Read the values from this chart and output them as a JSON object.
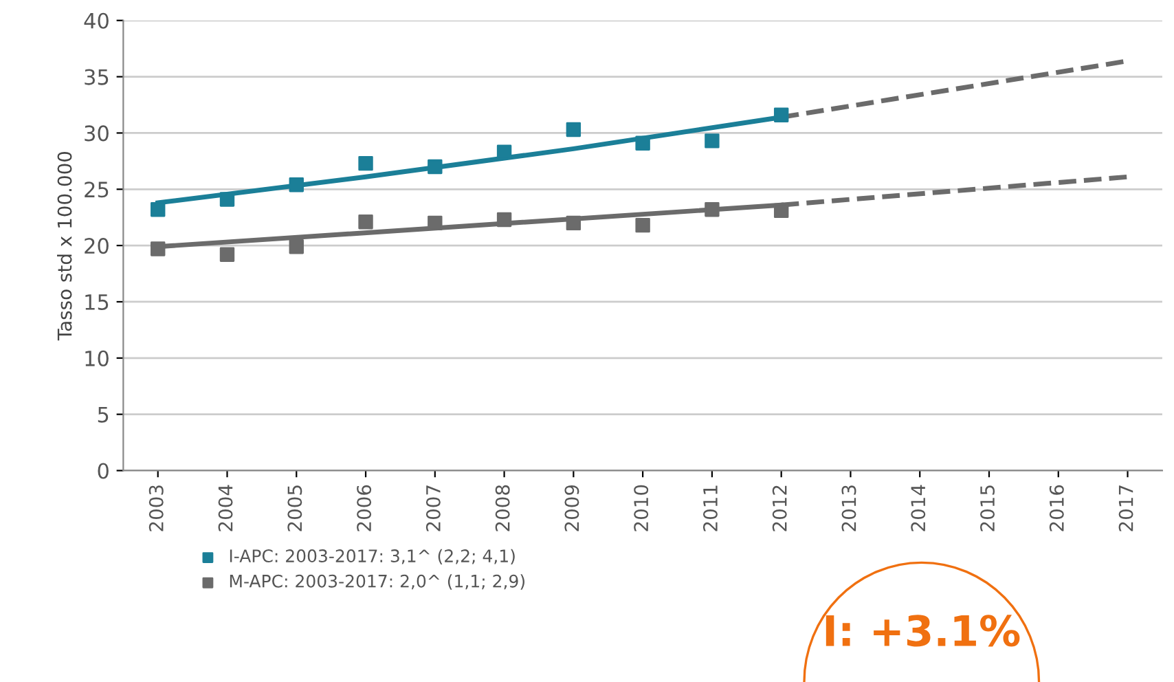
{
  "chart_data": {
    "type": "scatter",
    "ylabel": "Tasso std x 100.000",
    "series": [
      {
        "name": "I-APC: 2003-2017: 3,1^ (2,2; 4,1)",
        "color": "#1b7f98",
        "marker": "square",
        "x": [
          2003,
          2004,
          2005,
          2006,
          2007,
          2008,
          2009,
          2010,
          2011,
          2012
        ],
        "values": [
          23.2,
          24.1,
          25.4,
          27.3,
          27.0,
          28.3,
          30.3,
          29.1,
          29.3,
          31.6
        ]
      },
      {
        "name": "M-APC: 2003-2017: 2,0^ (1,1; 2,9)",
        "color": "#6b6b6b",
        "marker": "square",
        "x": [
          2003,
          2004,
          2005,
          2006,
          2007,
          2008,
          2009,
          2010,
          2011,
          2012
        ],
        "values": [
          19.7,
          19.2,
          19.9,
          22.1,
          22.0,
          22.3,
          22.0,
          21.8,
          23.2,
          23.1
        ]
      },
      {
        "color": "#1b7f98",
        "type": "line",
        "line_style": "solid",
        "x": [
          2003,
          2006,
          2009,
          2012
        ],
        "values": [
          23.8,
          26.1,
          28.6,
          31.4
        ]
      },
      {
        "color": "#6b6b6b",
        "type": "line",
        "line_style": "dashed",
        "x": [
          2012,
          2017
        ],
        "values": [
          31.4,
          36.4
        ]
      },
      {
        "color": "#6b6b6b",
        "type": "line",
        "line_style": "solid",
        "x": [
          2003,
          2012
        ],
        "values": [
          19.9,
          23.6
        ]
      },
      {
        "color": "#6b6b6b",
        "type": "line",
        "line_style": "dashed",
        "x": [
          2012,
          2017
        ],
        "values": [
          23.6,
          26.1
        ]
      }
    ],
    "xlim": [
      2002.5,
      2017.5
    ],
    "xticks": [
      2003,
      2004,
      2005,
      2006,
      2007,
      2008,
      2009,
      2010,
      2011,
      2012,
      2013,
      2014,
      2015,
      2016,
      2017
    ],
    "ylim": [
      0,
      40
    ],
    "yticks": [
      0,
      5,
      10,
      15,
      20,
      25,
      30,
      35,
      40
    ],
    "grid": "y",
    "legend": "bottom left",
    "annotations": [
      "I: +3.1%"
    ]
  }
}
